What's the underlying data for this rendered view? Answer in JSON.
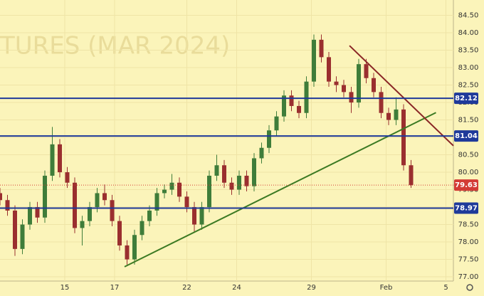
{
  "chart_data": {
    "type": "candlestick",
    "watermark": "TURES (MAR 2024)",
    "x": [
      0,
      3,
      6,
      9,
      12,
      15,
      18,
      21,
      24,
      27,
      30,
      33,
      36,
      39,
      42,
      45,
      48,
      51,
      54,
      57,
      60,
      63,
      66,
      69,
      72,
      75,
      78,
      81,
      84,
      87,
      90,
      93,
      96,
      99,
      102,
      105,
      108,
      111,
      114,
      117,
      120,
      123,
      126,
      129,
      132,
      135,
      138,
      141,
      144,
      147,
      150,
      153,
      156,
      159,
      162,
      165
    ],
    "open": [
      79.4,
      79.2,
      78.9,
      77.8,
      78.5,
      79.0,
      78.7,
      79.9,
      80.8,
      80.0,
      79.7,
      78.4,
      78.6,
      79.0,
      79.4,
      79.2,
      78.6,
      77.9,
      77.5,
      78.2,
      78.6,
      78.9,
      79.4,
      79.5,
      79.7,
      79.3,
      79.0,
      78.5,
      79.0,
      79.9,
      80.2,
      79.7,
      79.5,
      79.9,
      79.6,
      80.4,
      80.7,
      81.2,
      81.6,
      82.2,
      81.9,
      81.7,
      82.6,
      83.8,
      83.3,
      82.6,
      82.5,
      82.3,
      82.0,
      83.1,
      82.7,
      82.3,
      81.7,
      81.5,
      81.8,
      80.2
    ],
    "high": [
      79.55,
      79.35,
      79.05,
      78.65,
      79.15,
      79.15,
      80.05,
      81.3,
      80.95,
      80.15,
      79.85,
      78.75,
      79.15,
      79.55,
      79.65,
      79.35,
      78.75,
      78.05,
      78.35,
      78.75,
      79.05,
      79.55,
      79.65,
      79.95,
      79.85,
      79.45,
      79.15,
      79.15,
      80.05,
      80.5,
      80.35,
      79.85,
      80.05,
      80.05,
      80.55,
      80.85,
      81.35,
      81.75,
      82.35,
      82.35,
      82.05,
      82.75,
      83.95,
      83.95,
      83.45,
      82.75,
      82.65,
      82.45,
      83.25,
      83.25,
      82.85,
      82.45,
      81.85,
      82.15,
      81.95,
      80.35
    ],
    "low": [
      79.05,
      78.75,
      77.6,
      77.65,
      78.35,
      78.55,
      78.55,
      79.75,
      79.85,
      79.55,
      78.25,
      77.9,
      78.45,
      78.85,
      79.05,
      78.45,
      77.75,
      77.35,
      77.35,
      78.05,
      78.45,
      78.75,
      79.25,
      79.35,
      79.15,
      78.85,
      78.3,
      78.35,
      78.85,
      79.75,
      79.55,
      79.35,
      79.35,
      79.45,
      79.45,
      80.25,
      80.55,
      81.05,
      81.45,
      81.75,
      81.55,
      81.55,
      82.45,
      83.15,
      82.45,
      82.3,
      82.15,
      81.7,
      81.85,
      82.55,
      82.15,
      81.55,
      81.35,
      81.35,
      80.05,
      79.55
    ],
    "close": [
      79.2,
      78.9,
      77.8,
      78.5,
      79.0,
      78.7,
      79.9,
      80.8,
      80.0,
      79.7,
      78.4,
      78.6,
      79.0,
      79.4,
      79.2,
      78.6,
      77.9,
      77.5,
      78.2,
      78.6,
      78.9,
      79.4,
      79.5,
      79.7,
      79.3,
      79.0,
      78.5,
      79.0,
      79.9,
      80.2,
      79.7,
      79.5,
      79.9,
      79.6,
      80.4,
      80.7,
      81.2,
      81.6,
      82.2,
      81.9,
      81.7,
      82.6,
      83.8,
      83.3,
      82.6,
      82.5,
      82.3,
      82.0,
      83.1,
      82.7,
      82.3,
      81.7,
      81.5,
      81.8,
      80.2,
      79.63
    ],
    "up_color": "#3f7d3a",
    "down_color": "#9a2f2f",
    "levels": [
      82.12,
      81.04,
      78.97
    ],
    "level_color": "#1f3a9a",
    "last_price": 79.63,
    "last_color": "#d33b35",
    "trendlines": [
      {
        "color": "#3c7a23",
        "x": [
          50,
          175
        ],
        "y": [
          77.29,
          81.71
        ]
      },
      {
        "color": "#8a2626",
        "x": [
          140.3,
          182
        ],
        "y": [
          83.63,
          80.76
        ]
      }
    ],
    "xlim": [
      0,
      182
    ],
    "ylim": [
      76.45,
      84.94
    ],
    "xticks": [
      {
        "value": 26,
        "label": "15"
      },
      {
        "value": 46,
        "label": "17"
      },
      {
        "value": 75,
        "label": "22"
      },
      {
        "value": 95,
        "label": "24"
      },
      {
        "value": 125,
        "label": "29"
      },
      {
        "value": 155,
        "label": "Feb"
      },
      {
        "value": 179,
        "label": "5"
      }
    ],
    "yticks": [
      {
        "value": 77,
        "label": "77.00"
      },
      {
        "value": 77.5,
        "label": "77.50"
      },
      {
        "value": 78,
        "label": "78.00"
      },
      {
        "value": 78.5,
        "label": "78.50"
      },
      {
        "value": 79,
        "label": "79.00"
      },
      {
        "value": 79.5,
        "label": "79.50"
      },
      {
        "value": 80,
        "label": "80.00"
      },
      {
        "value": 80.5,
        "label": "80.50"
      },
      {
        "value": 81,
        "label": "81.00"
      },
      {
        "value": 81.5,
        "label": "81.50"
      },
      {
        "value": 82,
        "label": "82.00"
      },
      {
        "value": 82.5,
        "label": "82.50"
      },
      {
        "value": 83,
        "label": "83.00"
      },
      {
        "value": 83.5,
        "label": "83.50"
      },
      {
        "value": 84,
        "label": "84.00"
      },
      {
        "value": 84.5,
        "label": "84.50"
      }
    ],
    "grid": true
  }
}
